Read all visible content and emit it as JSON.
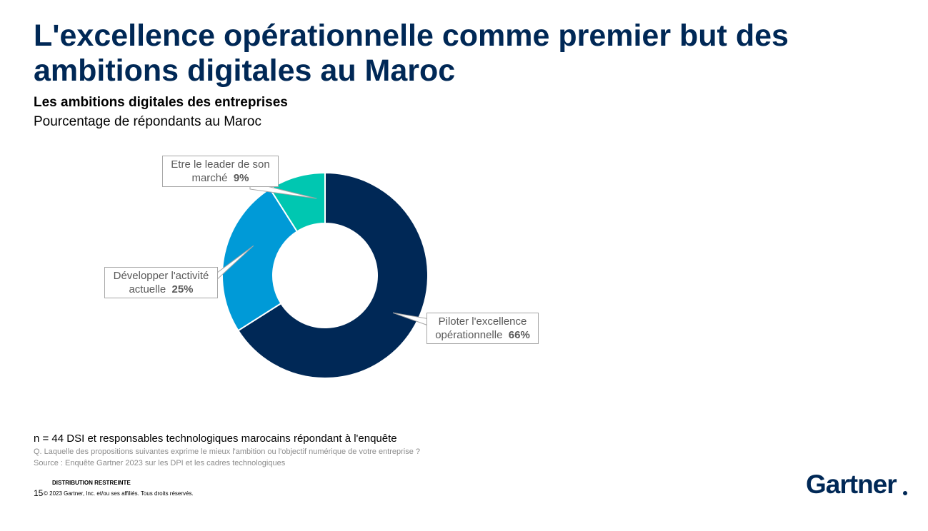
{
  "title": "L'excellence opérationnelle comme premier but des ambitions digitales au Maroc",
  "chart_subtitle_bold": "Les ambitions digitales des entreprises",
  "chart_subtitle": "Pourcentage de répondants au Maroc",
  "chart_data": {
    "type": "pie",
    "donut": true,
    "slices": [
      {
        "label": "Piloter l'excellence opérationnelle",
        "label_line1": "Piloter l'excellence",
        "label_line2": "opérationnelle",
        "value": 66,
        "value_text": "66%",
        "color": "#002856"
      },
      {
        "label": "Développer l'activité actuelle",
        "label_line1": "Développer l'activité",
        "label_line2": "actuelle",
        "value": 25,
        "value_text": "25%",
        "color": "#009ad7"
      },
      {
        "label": "Etre le leader de son marché",
        "label_line1": "Etre le leader de son",
        "label_line2": "marché",
        "value": 9,
        "value_text": "9%",
        "color": "#00c7b1"
      }
    ]
  },
  "footnotes": {
    "sample": "n = 44 DSI et responsables technologiques marocains répondant à l'enquête",
    "question": "Q. Laquelle des propositions suivantes exprime le mieux l'ambition ou l'objectif numérique de votre entreprise ?",
    "source": "Source : Enquête Gartner 2023 sur les DPI et les cadres technologiques"
  },
  "footer": {
    "distribution": "DISTRIBUTION RESTREINTE",
    "page_number": "15",
    "copyright": "© 2023 Gartner, Inc. et/ou ses affiliés. Tous droits réservés.",
    "logo_text": "Gartner"
  }
}
